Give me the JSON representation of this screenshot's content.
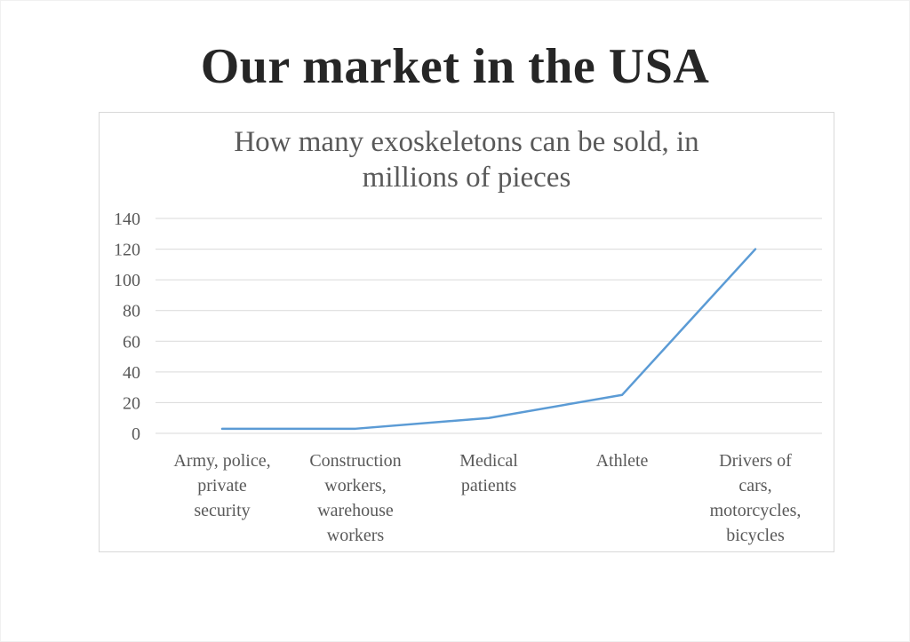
{
  "slide": {
    "title": "Our market in the USA"
  },
  "chart_data": {
    "type": "line",
    "title_lines": [
      "How many exoskeletons can be sold, in",
      "millions of pieces"
    ],
    "categories": [
      [
        "Army, police,",
        "private",
        "security"
      ],
      [
        "Construction",
        "workers,",
        "warehouse",
        "workers"
      ],
      [
        "Medical",
        "patients"
      ],
      [
        "Athlete"
      ],
      [
        "Drivers of",
        "cars,",
        "motorcycles,",
        "bicycles"
      ]
    ],
    "series": [
      {
        "values": [
          3,
          3,
          10,
          25,
          120
        ]
      }
    ],
    "ylim": [
      0,
      140
    ],
    "yticks": [
      0,
      20,
      40,
      60,
      80,
      100,
      120,
      140
    ],
    "grid": true,
    "legend": "none",
    "colors": {
      "line": "#5b9bd5",
      "grid": "#d9d9d9",
      "text": "#595959",
      "title": "#262626"
    }
  }
}
